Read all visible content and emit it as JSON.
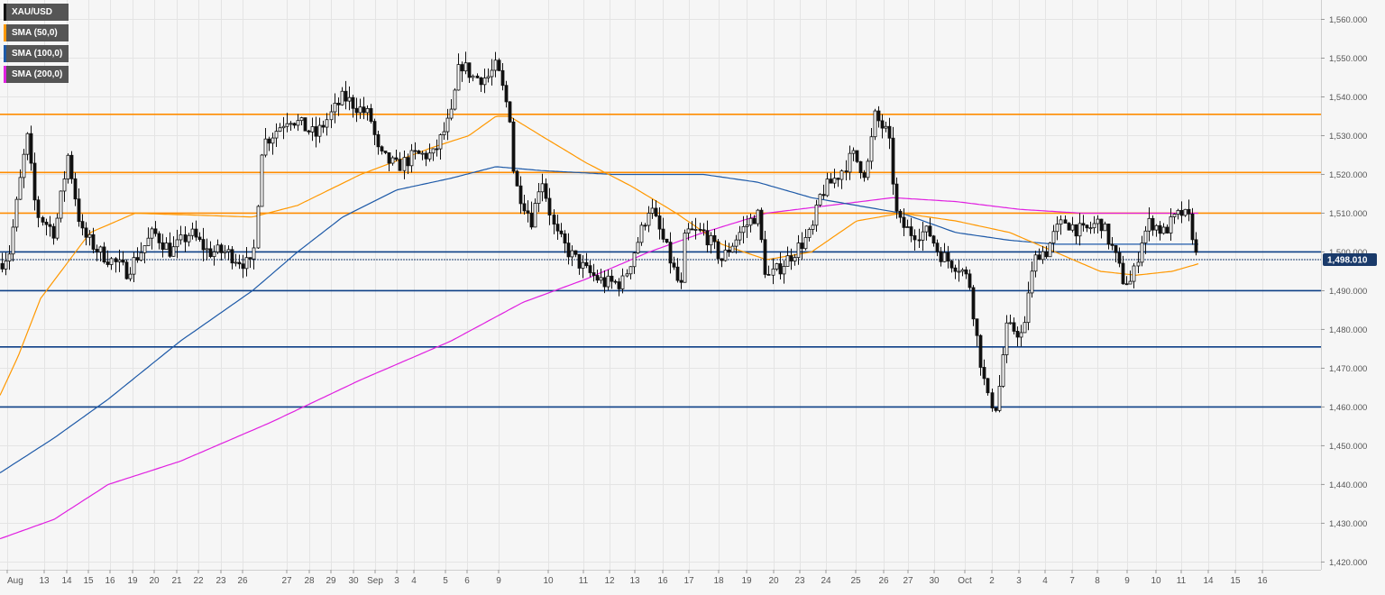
{
  "legend": [
    {
      "label": "XAU/USD",
      "color": "#111111"
    },
    {
      "label": "SMA (50,0)",
      "color": "#ff9800"
    },
    {
      "label": "SMA (100,0)",
      "color": "#1e5aa8"
    },
    {
      "label": "SMA (200,0)",
      "color": "#e020e0"
    }
  ],
  "colors": {
    "background": "#f6f6f6",
    "grid": "#e4e4e4",
    "resistance": "#ff8c00",
    "support": "#0d3f86",
    "bull_candle": "#ffffff",
    "bear_candle": "#111111",
    "price_label_bg": "#1a3a6a"
  },
  "chart_data": {
    "type": "candlestick",
    "symbol": "XAU/USD",
    "ylim": [
      1418,
      1565
    ],
    "y_ticks": [
      "1,420.000",
      "1,430.000",
      "1,440.000",
      "1,450.000",
      "1,460.000",
      "1,470.000",
      "1,480.000",
      "1,490.000",
      "1,500.000",
      "1,510.000",
      "1,520.000",
      "1,530.000",
      "1,540.000",
      "1,550.000",
      "1,560.000"
    ],
    "x_ticks": [
      "Aug",
      "13",
      "14",
      "15",
      "16",
      "19",
      "20",
      "21",
      "22",
      "23",
      "26",
      "27",
      "28",
      "29",
      "30",
      "Sep",
      "3",
      "4",
      "5",
      "6",
      "9",
      "10",
      "11",
      "12",
      "13",
      "16",
      "17",
      "18",
      "19",
      "20",
      "23",
      "24",
      "25",
      "26",
      "27",
      "30",
      "Oct",
      "2",
      "3",
      "4",
      "7",
      "8",
      "9",
      "10",
      "11",
      "14",
      "15",
      "16"
    ],
    "current_price": 1498.01,
    "current_price_label": "1,498.010",
    "horizontal_levels": {
      "resistance": [
        1535.5,
        1520.5,
        1510
      ],
      "support": [
        1500,
        1490,
        1475.5,
        1460
      ]
    },
    "close_series_anchors": [
      [
        0,
        1497
      ],
      [
        10,
        1500
      ],
      [
        20,
        1515
      ],
      [
        30,
        1530
      ],
      [
        40,
        1510
      ],
      [
        60,
        1505
      ],
      [
        75,
        1525
      ],
      [
        90,
        1505
      ],
      [
        110,
        1500
      ],
      [
        140,
        1495
      ],
      [
        170,
        1505
      ],
      [
        190,
        1500
      ],
      [
        210,
        1505
      ],
      [
        230,
        1500
      ],
      [
        250,
        1500
      ],
      [
        280,
        1496
      ],
      [
        290,
        1528
      ],
      [
        300,
        1530
      ],
      [
        320,
        1535
      ],
      [
        350,
        1530
      ],
      [
        380,
        1540
      ],
      [
        410,
        1535
      ],
      [
        420,
        1525
      ],
      [
        440,
        1522
      ],
      [
        460,
        1525
      ],
      [
        480,
        1525
      ],
      [
        500,
        1535
      ],
      [
        510,
        1549
      ],
      [
        525,
        1545
      ],
      [
        540,
        1545
      ],
      [
        550,
        1548
      ],
      [
        565,
        1535
      ],
      [
        570,
        1518
      ],
      [
        590,
        1508
      ],
      [
        600,
        1520
      ],
      [
        615,
        1505
      ],
      [
        630,
        1500
      ],
      [
        650,
        1495
      ],
      [
        670,
        1492
      ],
      [
        690,
        1492
      ],
      [
        710,
        1505
      ],
      [
        720,
        1512
      ],
      [
        740,
        1500
      ],
      [
        755,
        1490
      ],
      [
        760,
        1505
      ],
      [
        780,
        1505
      ],
      [
        800,
        1498
      ],
      [
        820,
        1505
      ],
      [
        840,
        1510
      ],
      [
        850,
        1493
      ],
      [
        860,
        1495
      ],
      [
        880,
        1500
      ],
      [
        900,
        1505
      ],
      [
        910,
        1515
      ],
      [
        930,
        1520
      ],
      [
        945,
        1525
      ],
      [
        960,
        1520
      ],
      [
        970,
        1535
      ],
      [
        985,
        1530
      ],
      [
        995,
        1508
      ],
      [
        1010,
        1505
      ],
      [
        1030,
        1505
      ],
      [
        1040,
        1500
      ],
      [
        1050,
        1498
      ],
      [
        1065,
        1496
      ],
      [
        1075,
        1492
      ],
      [
        1085,
        1475
      ],
      [
        1095,
        1462
      ],
      [
        1105,
        1460
      ],
      [
        1115,
        1480
      ],
      [
        1125,
        1480
      ],
      [
        1135,
        1478
      ],
      [
        1140,
        1490
      ],
      [
        1150,
        1500
      ],
      [
        1160,
        1500
      ],
      [
        1170,
        1505
      ],
      [
        1180,
        1508
      ],
      [
        1200,
        1505
      ],
      [
        1220,
        1508
      ],
      [
        1235,
        1500
      ],
      [
        1245,
        1493
      ],
      [
        1255,
        1492
      ],
      [
        1265,
        1503
      ],
      [
        1275,
        1508
      ],
      [
        1290,
        1505
      ],
      [
        1300,
        1508
      ],
      [
        1310,
        1510
      ],
      [
        1320,
        1508
      ],
      [
        1327,
        1498
      ]
    ],
    "sma50_anchors": [
      [
        0,
        1463
      ],
      [
        20,
        1473
      ],
      [
        45,
        1488
      ],
      [
        100,
        1505
      ],
      [
        150,
        1510
      ],
      [
        280,
        1509
      ],
      [
        330,
        1512
      ],
      [
        400,
        1520
      ],
      [
        480,
        1527
      ],
      [
        520,
        1530
      ],
      [
        550,
        1535
      ],
      [
        565,
        1535
      ],
      [
        600,
        1530
      ],
      [
        650,
        1523
      ],
      [
        700,
        1517
      ],
      [
        750,
        1510
      ],
      [
        800,
        1502
      ],
      [
        850,
        1498
      ],
      [
        900,
        1500
      ],
      [
        950,
        1508
      ],
      [
        1000,
        1510
      ],
      [
        1060,
        1508
      ],
      [
        1120,
        1505
      ],
      [
        1170,
        1500
      ],
      [
        1220,
        1495
      ],
      [
        1260,
        1494
      ],
      [
        1300,
        1495
      ],
      [
        1330,
        1497
      ]
    ],
    "sma100_anchors": [
      [
        0,
        1443
      ],
      [
        60,
        1452
      ],
      [
        120,
        1462
      ],
      [
        200,
        1477
      ],
      [
        280,
        1490
      ],
      [
        330,
        1500
      ],
      [
        380,
        1509
      ],
      [
        440,
        1516
      ],
      [
        500,
        1519
      ],
      [
        550,
        1522
      ],
      [
        600,
        1521
      ],
      [
        680,
        1520
      ],
      [
        780,
        1520
      ],
      [
        840,
        1518
      ],
      [
        900,
        1514
      ],
      [
        950,
        1512
      ],
      [
        1000,
        1510
      ],
      [
        1060,
        1505
      ],
      [
        1120,
        1503
      ],
      [
        1170,
        1502
      ],
      [
        1250,
        1502
      ],
      [
        1330,
        1502
      ]
    ],
    "sma200_anchors": [
      [
        0,
        1426
      ],
      [
        60,
        1431
      ],
      [
        120,
        1440
      ],
      [
        200,
        1446
      ],
      [
        300,
        1456
      ],
      [
        400,
        1467
      ],
      [
        500,
        1477
      ],
      [
        580,
        1487
      ],
      [
        650,
        1493
      ],
      [
        720,
        1500
      ],
      [
        780,
        1505
      ],
      [
        850,
        1510
      ],
      [
        920,
        1512
      ],
      [
        990,
        1514
      ],
      [
        1060,
        1513
      ],
      [
        1130,
        1511
      ],
      [
        1200,
        1510
      ],
      [
        1270,
        1510
      ],
      [
        1330,
        1510
      ]
    ],
    "grid": true
  }
}
